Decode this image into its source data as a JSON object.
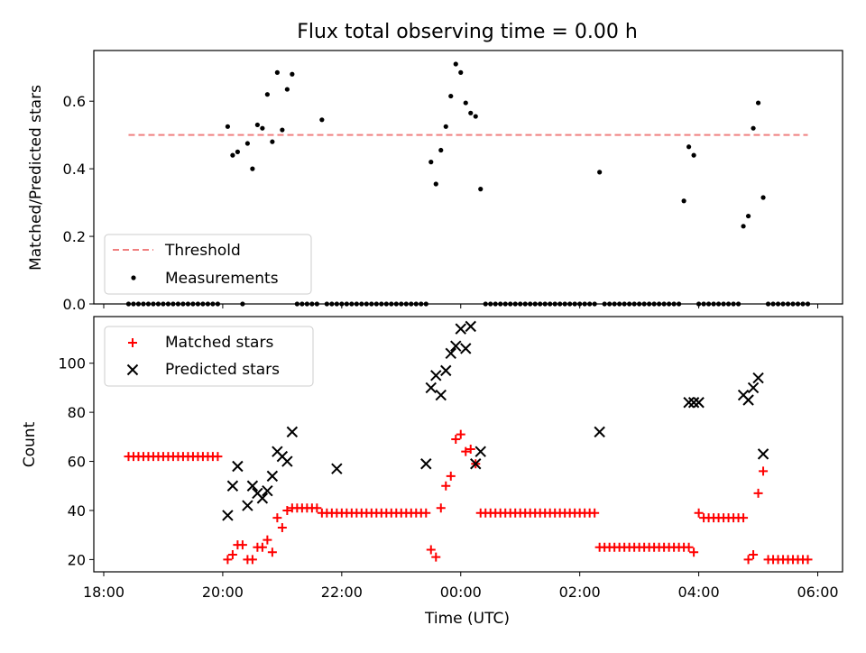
{
  "chart_data": [
    {
      "type": "scatter",
      "title": "Flux total observing time = 0.00 h",
      "ylabel": "Matched/Predicted stars",
      "xlabel": "",
      "ylim": [
        0.0,
        0.75
      ],
      "yticks": [
        "0.0",
        "0.2",
        "0.4",
        "0.6"
      ],
      "threshold": {
        "name": "Threshold",
        "value": 0.5,
        "x_range": [
          "18:25",
          "05:50"
        ],
        "color": "#f08080"
      },
      "legend_position": "lower-left",
      "series": [
        {
          "name": "Measurements",
          "color": "#000000",
          "x": [
            "18:25",
            "18:30",
            "18:35",
            "18:40",
            "18:45",
            "18:50",
            "18:55",
            "19:00",
            "19:05",
            "19:10",
            "19:15",
            "19:20",
            "19:25",
            "19:30",
            "19:35",
            "19:40",
            "19:45",
            "19:50",
            "19:55",
            "20:05",
            "20:10",
            "20:15",
            "20:20",
            "20:25",
            "20:30",
            "20:35",
            "20:40",
            "20:45",
            "20:50",
            "20:55",
            "21:00",
            "21:05",
            "21:10",
            "21:15",
            "21:20",
            "21:25",
            "21:30",
            "21:35",
            "21:40",
            "21:45",
            "21:50",
            "21:55",
            "22:00",
            "22:05",
            "22:10",
            "22:15",
            "22:20",
            "22:25",
            "22:30",
            "22:35",
            "22:40",
            "22:45",
            "22:50",
            "22:55",
            "23:00",
            "23:05",
            "23:10",
            "23:15",
            "23:20",
            "23:25",
            "23:30",
            "23:35",
            "23:40",
            "23:45",
            "23:50",
            "23:55",
            "00:00",
            "00:05",
            "00:10",
            "00:15",
            "00:20",
            "00:25",
            "00:30",
            "00:35",
            "00:40",
            "00:45",
            "00:50",
            "00:55",
            "01:00",
            "01:05",
            "01:10",
            "01:15",
            "01:20",
            "01:25",
            "01:30",
            "01:35",
            "01:40",
            "01:45",
            "01:50",
            "01:55",
            "02:00",
            "02:05",
            "02:10",
            "02:15",
            "02:20",
            "02:25",
            "02:30",
            "02:35",
            "02:40",
            "02:45",
            "02:50",
            "02:55",
            "03:00",
            "03:05",
            "03:10",
            "03:15",
            "03:20",
            "03:25",
            "03:30",
            "03:35",
            "03:40",
            "03:45",
            "03:50",
            "03:55",
            "04:00",
            "04:05",
            "04:10",
            "04:15",
            "04:20",
            "04:25",
            "04:30",
            "04:35",
            "04:40",
            "04:45",
            "04:50",
            "04:55",
            "05:00",
            "05:05",
            "05:10",
            "05:15",
            "05:20",
            "05:25",
            "05:30",
            "05:35",
            "05:40",
            "05:45",
            "05:50"
          ],
          "y": [
            0,
            0,
            0,
            0,
            0,
            0,
            0,
            0,
            0,
            0,
            0,
            0,
            0,
            0,
            0,
            0,
            0,
            0,
            0,
            0.525,
            0.44,
            0.45,
            0,
            0.475,
            0.4,
            0.53,
            0.52,
            0.62,
            0.48,
            0.685,
            0.515,
            0.635,
            0.68,
            0,
            0,
            0,
            0,
            0,
            0.545,
            0,
            0,
            0,
            0,
            0,
            0,
            0,
            0,
            0,
            0,
            0,
            0,
            0,
            0,
            0,
            0,
            0,
            0,
            0,
            0,
            0,
            0.42,
            0.355,
            0.455,
            0.525,
            0.615,
            0.71,
            0.685,
            0.595,
            0.565,
            0.555,
            0.34,
            0,
            0,
            0,
            0,
            0,
            0,
            0,
            0,
            0,
            0,
            0,
            0,
            0,
            0,
            0,
            0,
            0,
            0,
            0,
            0,
            0,
            0,
            0,
            0.39,
            0,
            0,
            0,
            0,
            0,
            0,
            0,
            0,
            0,
            0,
            0,
            0,
            0,
            0,
            0,
            0,
            0.305,
            0.465,
            0.44,
            0,
            0,
            0,
            0,
            0,
            0,
            0,
            0,
            0,
            0.23,
            0.26,
            0.52,
            0.595,
            0.315,
            0,
            0,
            0,
            0,
            0,
            0,
            0,
            0,
            0
          ]
        }
      ]
    },
    {
      "type": "scatter",
      "title": "",
      "ylabel": "Count",
      "xlabel": "Time (UTC)",
      "ylim": [
        15,
        119
      ],
      "yticks": [
        "20",
        "40",
        "60",
        "80",
        "100"
      ],
      "xlim": [
        "17:50",
        "06:25"
      ],
      "xticks": [
        "18:00",
        "20:00",
        "22:00",
        "00:00",
        "02:00",
        "04:00",
        "06:00"
      ],
      "legend_position": "upper-left",
      "series": [
        {
          "name": "Matched stars",
          "marker": "plus",
          "color": "#ff0000",
          "x": [
            "18:25",
            "18:30",
            "18:35",
            "18:40",
            "18:45",
            "18:50",
            "18:55",
            "19:00",
            "19:05",
            "19:10",
            "19:15",
            "19:20",
            "19:25",
            "19:30",
            "19:35",
            "19:40",
            "19:45",
            "19:50",
            "19:55",
            "20:05",
            "20:10",
            "20:15",
            "20:20",
            "20:25",
            "20:30",
            "20:35",
            "20:40",
            "20:45",
            "20:50",
            "20:55",
            "21:00",
            "21:05",
            "21:10",
            "21:15",
            "21:20",
            "21:25",
            "21:30",
            "21:35",
            "21:40",
            "21:45",
            "21:50",
            "21:55",
            "22:00",
            "22:05",
            "22:10",
            "22:15",
            "22:20",
            "22:25",
            "22:30",
            "22:35",
            "22:40",
            "22:45",
            "22:50",
            "22:55",
            "23:00",
            "23:05",
            "23:10",
            "23:15",
            "23:20",
            "23:25",
            "23:30",
            "23:35",
            "23:40",
            "23:45",
            "23:50",
            "23:55",
            "00:00",
            "00:05",
            "00:10",
            "00:15",
            "00:20",
            "00:25",
            "00:30",
            "00:35",
            "00:40",
            "00:45",
            "00:50",
            "00:55",
            "01:00",
            "01:05",
            "01:10",
            "01:15",
            "01:20",
            "01:25",
            "01:30",
            "01:35",
            "01:40",
            "01:45",
            "01:50",
            "01:55",
            "02:00",
            "02:05",
            "02:10",
            "02:15",
            "02:20",
            "02:25",
            "02:30",
            "02:35",
            "02:40",
            "02:45",
            "02:50",
            "02:55",
            "03:00",
            "03:05",
            "03:10",
            "03:15",
            "03:20",
            "03:25",
            "03:30",
            "03:35",
            "03:40",
            "03:45",
            "03:50",
            "03:55",
            "04:00",
            "04:05",
            "04:10",
            "04:15",
            "04:20",
            "04:25",
            "04:30",
            "04:35",
            "04:40",
            "04:45",
            "04:50",
            "04:55",
            "05:00",
            "05:05",
            "05:10",
            "05:15",
            "05:20",
            "05:25",
            "05:30",
            "05:35",
            "05:40",
            "05:45",
            "05:50"
          ],
          "y": [
            62,
            62,
            62,
            62,
            62,
            62,
            62,
            62,
            62,
            62,
            62,
            62,
            62,
            62,
            62,
            62,
            62,
            62,
            62,
            20,
            22,
            26,
            26,
            20,
            20,
            25,
            25,
            28,
            23,
            37,
            33,
            40,
            41,
            41,
            41,
            41,
            41,
            41,
            39,
            39,
            39,
            39,
            39,
            39,
            39,
            39,
            39,
            39,
            39,
            39,
            39,
            39,
            39,
            39,
            39,
            39,
            39,
            39,
            39,
            39,
            24,
            21,
            41,
            50,
            54,
            69,
            71,
            64,
            65,
            59,
            39,
            39,
            39,
            39,
            39,
            39,
            39,
            39,
            39,
            39,
            39,
            39,
            39,
            39,
            39,
            39,
            39,
            39,
            39,
            39,
            39,
            39,
            39,
            39,
            25,
            25,
            25,
            25,
            25,
            25,
            25,
            25,
            25,
            25,
            25,
            25,
            25,
            25,
            25,
            25,
            25,
            25,
            25,
            23,
            39,
            37,
            37,
            37,
            37,
            37,
            37,
            37,
            37,
            37,
            20,
            22,
            47,
            56,
            20,
            20,
            20,
            20,
            20,
            20,
            20,
            20,
            20
          ]
        },
        {
          "name": "Predicted stars",
          "marker": "x",
          "color": "#000000",
          "x": [
            "20:05",
            "20:10",
            "20:15",
            "20:25",
            "20:30",
            "20:35",
            "20:40",
            "20:45",
            "20:50",
            "20:55",
            "21:00",
            "21:05",
            "21:10",
            "21:55",
            "23:25",
            "23:30",
            "23:35",
            "23:40",
            "23:45",
            "23:50",
            "23:55",
            "00:00",
            "00:05",
            "00:10",
            "00:15",
            "00:20",
            "02:20",
            "03:50",
            "03:55",
            "04:00",
            "04:45",
            "04:50",
            "04:55",
            "05:00",
            "05:05"
          ],
          "y": [
            38,
            50,
            58,
            42,
            50,
            47,
            45,
            48,
            54,
            64,
            62,
            60,
            72,
            57,
            59,
            90,
            95,
            87,
            97,
            104,
            107,
            114,
            106,
            115,
            59,
            64,
            72,
            84,
            84,
            84,
            87,
            85,
            90,
            94,
            63
          ]
        }
      ]
    }
  ]
}
